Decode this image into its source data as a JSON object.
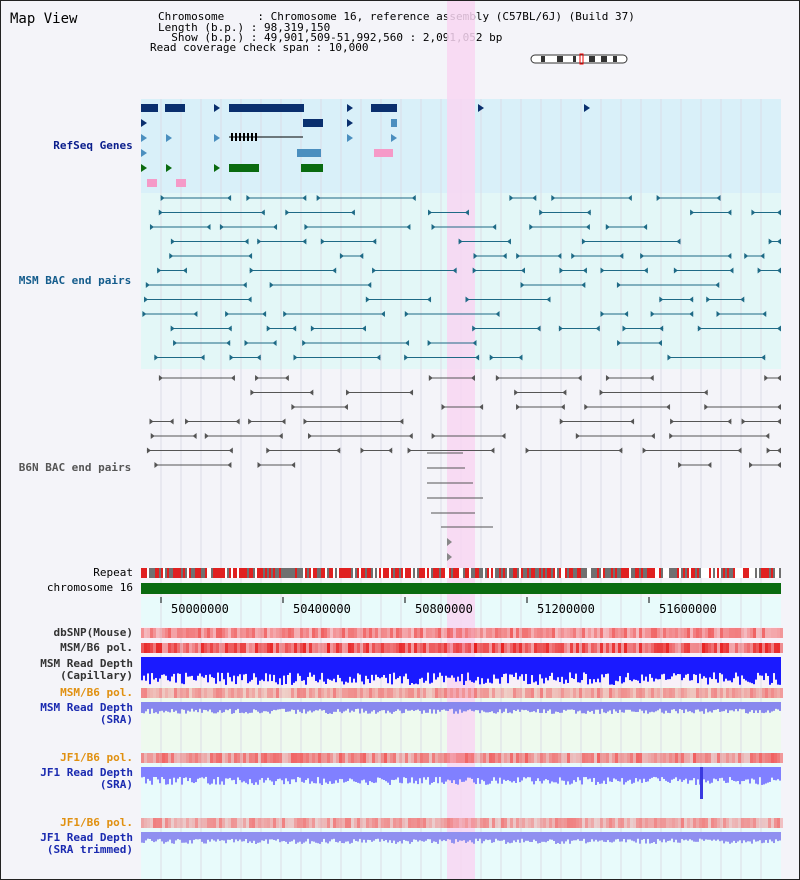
{
  "title": "Map View",
  "header": {
    "chromosome": "Chromosome     : Chromosome 16, reference assembly (C57BL/6J) (Build 37)",
    "length": "Length (b.p.) : 98,319,150",
    "show": "  Show (b.p.) : 49,901,509-51,992,560 : 2,091,052 bp",
    "coverage": "Read coverage check span : 10,000"
  },
  "tracks": {
    "refseq": "RefSeq Genes",
    "msm_bac": "MSM BAC end pairs",
    "b6n_bac": "B6N BAC end pairs",
    "repeat": "Repeat",
    "chromosome": "chromosome 16",
    "dbsnp": "dbSNP(Mouse)",
    "msm_b6_pol_1": "MSM/B6 pol.",
    "msm_depth_cap": "MSM Read Depth\n(Capillary)",
    "msm_b6_pol_2": "MSM/B6 pol.",
    "msm_depth_sra": "MSM Read Depth\n(SRA)",
    "jf1_b6_pol_1": "JF1/B6 pol.",
    "jf1_depth_sra": "JF1 Read Depth\n(SRA)",
    "jf1_b6_pol_2": "JF1/B6 pol.",
    "jf1_depth_trim": "JF1 Read Depth\n(SRA trimmed)"
  },
  "axis": {
    "ticks": [
      "50000000",
      "50400000",
      "50800000",
      "51200000",
      "51600000"
    ]
  },
  "colors": {
    "gene_dark": "#0a2f6e",
    "gene_light": "#4b8fbf",
    "gene_green": "#0a6b10",
    "gene_pink": "#f59ac8",
    "msm_line": "#1e6a86",
    "b6n_line": "#555555",
    "highlight": "#f8d6f2",
    "chrom_bar": "#0a6b10",
    "depth_blue": "#1a1aff",
    "depth_light": "#8080ff",
    "pol_red": "#f06060"
  }
}
